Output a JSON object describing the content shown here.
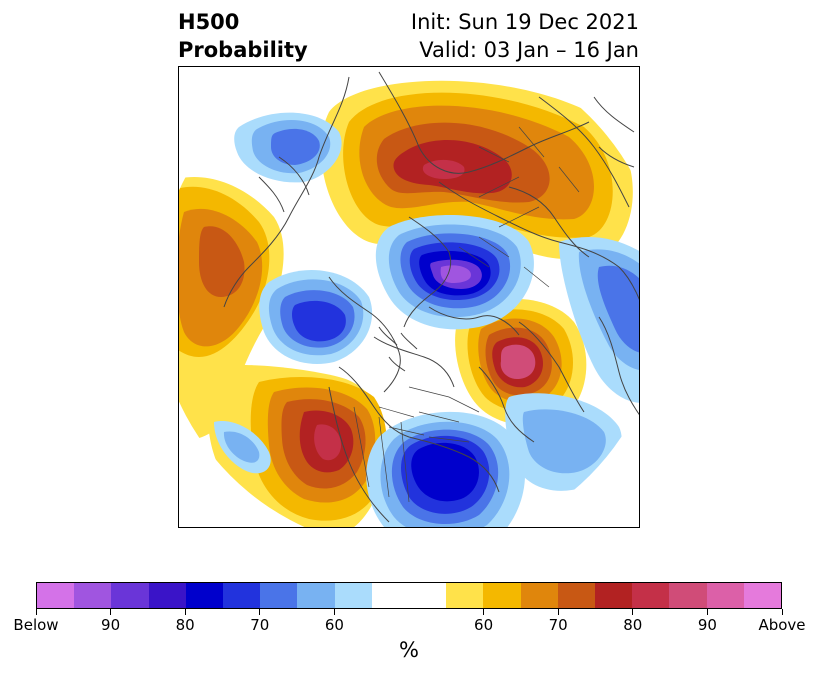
{
  "title": {
    "left_line1": "H500",
    "left_line2": "Probability",
    "right_line1": "Init: Sun 19 Dec 2021",
    "right_line2": "Valid: 03 Jan – 16 Jan"
  },
  "colorbar": {
    "colors": [
      "#d472e8",
      "#a055e0",
      "#6a35d8",
      "#3a14c8",
      "#0000cc",
      "#2233dd",
      "#4a74e8",
      "#78b2f2",
      "#aadcfc",
      "#ffffff",
      "#ffffff",
      "#ffe24a",
      "#f4b800",
      "#e0860c",
      "#c85814",
      "#b22222",
      "#c43048",
      "#d04c78",
      "#dc60a8",
      "#e57adc"
    ],
    "tick_labels": [
      "Below",
      "90",
      "80",
      "70",
      "60",
      "60",
      "70",
      "80",
      "90",
      "Above"
    ],
    "unit": "%"
  },
  "anomaly_centers": [
    {
      "sign": "below",
      "level": 90
    },
    {
      "sign": "below",
      "level": 90
    },
    {
      "sign": "below",
      "level": 80
    },
    {
      "sign": "below",
      "level": 70
    },
    {
      "sign": "below",
      "level": 70
    },
    {
      "sign": "above",
      "level": 90
    },
    {
      "sign": "above",
      "level": 90
    },
    {
      "sign": "above",
      "level": 80
    },
    {
      "sign": "above",
      "level": 70
    }
  ]
}
